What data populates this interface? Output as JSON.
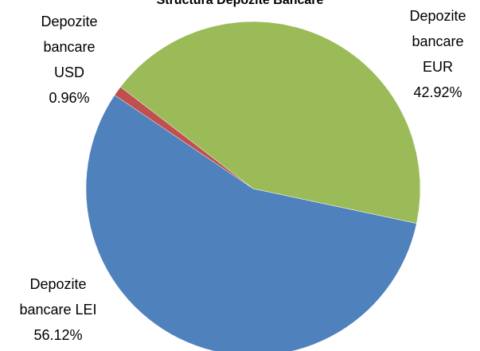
{
  "chart_data": {
    "type": "pie",
    "title": "Structura Depozite Bancare",
    "categories": [
      "Depozite bancare LEI",
      "Depozite bancare USD",
      "Depozite bancare EUR"
    ],
    "values": [
      56.12,
      0.96,
      42.92
    ],
    "value_labels": [
      "56.12%",
      "0.96%",
      "42.92%"
    ],
    "colors": [
      "#4f81bd",
      "#c0504d",
      "#9bbb59"
    ]
  }
}
